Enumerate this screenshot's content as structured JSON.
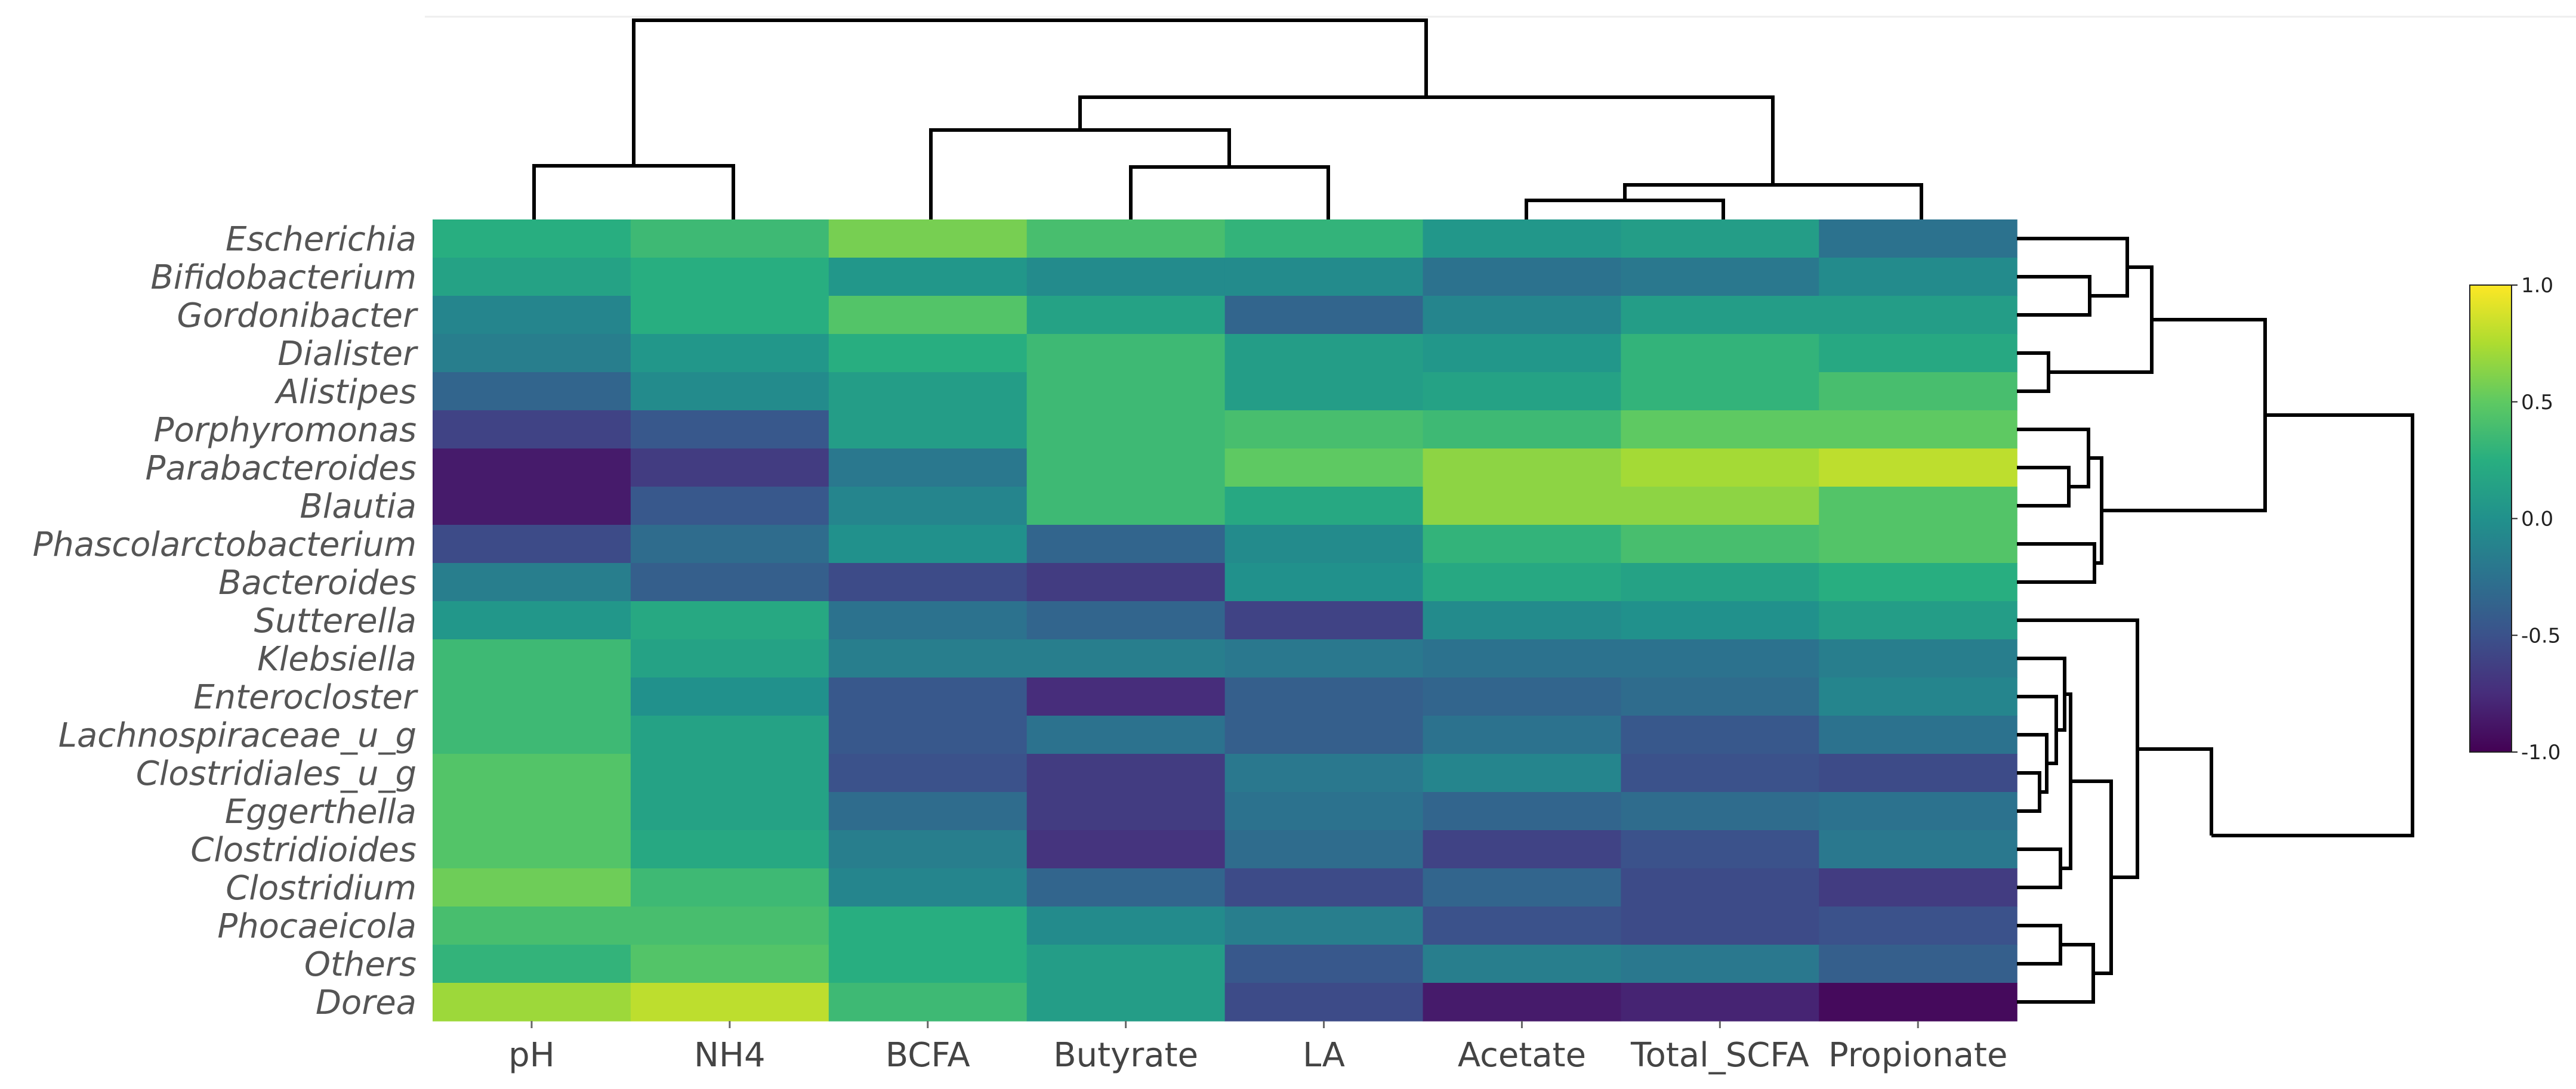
{
  "chart_data": {
    "type": "heatmap",
    "title": "",
    "rows": [
      "Escherichia",
      "Bifidobacterium",
      "Gordonibacter",
      "Dialister",
      "Alistipes",
      "Porphyromonas",
      "Parabacteroides",
      "Blautia",
      "Phascolarctobacterium",
      "Bacteroides",
      "Sutterella",
      "Klebsiella",
      "Enterocloster",
      "Lachnospiraceae_u_g",
      "Clostridiales_u_g",
      "Eggerthella",
      "Clostridioides",
      "Clostridium",
      "Phocaeicola",
      "Others",
      "Dorea"
    ],
    "columns": [
      "pH",
      "NH4",
      "BCFA",
      "Butyrate",
      "LA",
      "Acetate",
      "Total_SCFA",
      "Propionate"
    ],
    "values": [
      [
        0.25,
        0.35,
        0.58,
        0.4,
        0.3,
        0.05,
        0.1,
        -0.25
      ],
      [
        0.15,
        0.25,
        0.05,
        -0.05,
        -0.05,
        -0.25,
        -0.2,
        -0.05
      ],
      [
        -0.1,
        0.25,
        0.45,
        0.15,
        -0.35,
        -0.1,
        0.1,
        0.1
      ],
      [
        -0.15,
        0.05,
        0.25,
        0.35,
        0.1,
        0.05,
        0.3,
        0.2
      ],
      [
        -0.35,
        -0.05,
        0.1,
        0.35,
        0.1,
        0.15,
        0.3,
        0.4
      ],
      [
        -0.6,
        -0.45,
        0.1,
        0.35,
        0.4,
        0.35,
        0.5,
        0.5
      ],
      [
        -0.85,
        -0.65,
        -0.2,
        0.35,
        0.5,
        0.65,
        0.72,
        0.8
      ],
      [
        -0.85,
        -0.45,
        -0.1,
        0.35,
        0.2,
        0.65,
        0.65,
        0.45
      ],
      [
        -0.55,
        -0.3,
        0.0,
        -0.35,
        -0.05,
        0.3,
        0.4,
        0.45
      ],
      [
        -0.15,
        -0.4,
        -0.55,
        -0.65,
        0.0,
        0.2,
        0.15,
        0.25
      ],
      [
        0.05,
        0.2,
        -0.25,
        -0.35,
        -0.6,
        -0.05,
        0.0,
        0.1
      ],
      [
        0.35,
        0.15,
        -0.15,
        -0.15,
        -0.2,
        -0.25,
        -0.25,
        -0.15
      ],
      [
        0.35,
        0.0,
        -0.45,
        -0.75,
        -0.4,
        -0.35,
        -0.3,
        -0.1
      ],
      [
        0.35,
        0.15,
        -0.45,
        -0.25,
        -0.4,
        -0.25,
        -0.45,
        -0.25
      ],
      [
        0.45,
        0.15,
        -0.5,
        -0.65,
        -0.2,
        -0.1,
        -0.5,
        -0.55
      ],
      [
        0.45,
        0.15,
        -0.3,
        -0.65,
        -0.25,
        -0.35,
        -0.3,
        -0.25
      ],
      [
        0.45,
        0.2,
        -0.15,
        -0.7,
        -0.3,
        -0.6,
        -0.5,
        -0.2
      ],
      [
        0.55,
        0.35,
        -0.1,
        -0.35,
        -0.55,
        -0.35,
        -0.55,
        -0.65
      ],
      [
        0.4,
        0.4,
        0.25,
        -0.05,
        -0.15,
        -0.5,
        -0.55,
        -0.5
      ],
      [
        0.3,
        0.45,
        0.25,
        0.1,
        -0.45,
        -0.15,
        -0.2,
        -0.4
      ],
      [
        0.7,
        0.8,
        0.35,
        0.1,
        -0.55,
        -0.85,
        -0.8,
        -0.95
      ]
    ],
    "colormap": "viridis",
    "scale": {
      "min": -1.0,
      "max": 1.0
    },
    "colorbar": {
      "ticks": [
        "1.0",
        "0.5",
        "0.0",
        "-0.5",
        "-1.0"
      ],
      "tick_values": [
        1.0,
        0.5,
        0.0,
        -0.5,
        -1.0
      ]
    },
    "column_dendrogram": true,
    "row_dendrogram": true,
    "xlabel": "",
    "ylabel": ""
  }
}
